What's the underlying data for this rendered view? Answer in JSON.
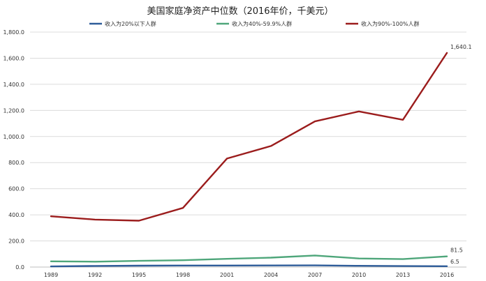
{
  "chart_data": {
    "type": "line",
    "title": "美国家庭净资产中位数（2016年价，千美元）",
    "x": [
      "1989",
      "1992",
      "1995",
      "1998",
      "2001",
      "2004",
      "2007",
      "2010",
      "2013",
      "2016"
    ],
    "ylim": [
      0,
      1800
    ],
    "yticks": [
      "0.0",
      "200.0",
      "400.0",
      "600.0",
      "800.0",
      "1,000.0",
      "1,200.0",
      "1,400.0",
      "1,600.0",
      "1,800.0"
    ],
    "grid": true,
    "legend_position": "top",
    "series": [
      {
        "name": "收入为20%以下人群",
        "color": "#2e5c99",
        "values": [
          4.8,
          8.5,
          10.5,
          12.0,
          12.0,
          12.5,
          13.0,
          9.5,
          7.5,
          6.5
        ],
        "end_label": "6.5"
      },
      {
        "name": "收入为40%-59.9%人群",
        "color": "#4ea67a",
        "values": [
          44.0,
          41.0,
          47.5,
          52.5,
          63.0,
          72.0,
          88.5,
          65.5,
          61.0,
          81.5
        ],
        "end_label": "81.5"
      },
      {
        "name": "收入为90%-100%人群",
        "color": "#9b1c1c",
        "values": [
          389.0,
          364.0,
          355.0,
          453.0,
          831.0,
          927.0,
          1116.0,
          1192.0,
          1128.0,
          1640.1
        ],
        "end_label": "1,640.1"
      }
    ]
  }
}
